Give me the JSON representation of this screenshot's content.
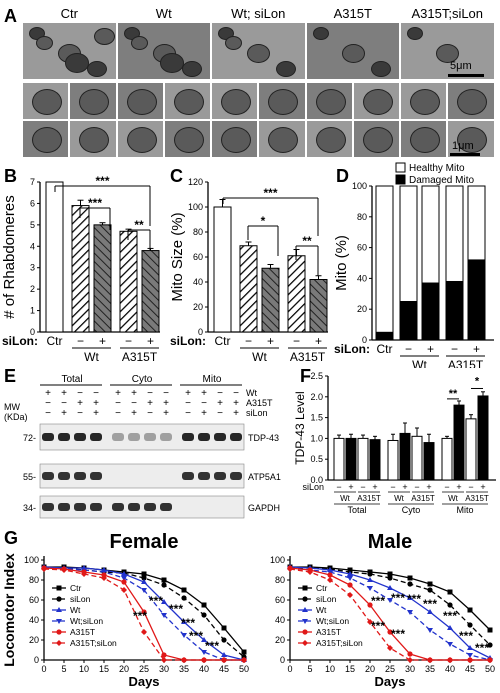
{
  "panelA": {
    "label": "A",
    "columns": [
      "Ctr",
      "Wt",
      "Wt; siLon",
      "A315T",
      "A315T;siLon"
    ],
    "scale_top": "5μm",
    "scale_bottom": "1μm"
  },
  "panelB": {
    "label": "B",
    "ylabel": "# of Rhabdomeres",
    "sig": [
      "***",
      "***",
      "**"
    ],
    "xrow_label": "siLon:",
    "ctr": "Ctr",
    "minus": "−",
    "plus": "+",
    "groups": [
      "Wt",
      "A315T"
    ]
  },
  "panelC": {
    "label": "C",
    "ylabel": "Mito Size (%)",
    "sig": [
      "***",
      "*",
      "**"
    ],
    "xrow_label": "siLon:",
    "ctr": "Ctr",
    "minus": "−",
    "plus": "+",
    "groups": [
      "Wt",
      "A315T"
    ]
  },
  "panelD": {
    "label": "D",
    "ylabel": "Mito (%)",
    "legend": [
      "Healthy Mito",
      "Damaged Mito"
    ],
    "xrow_label": "siLon:",
    "ctr": "Ctr",
    "minus": "−",
    "plus": "+",
    "groups": [
      "Wt",
      "A315T"
    ]
  },
  "panelE": {
    "label": "E",
    "fractions": [
      "Total",
      "Cyto",
      "Mito"
    ],
    "row_labels": [
      "Wt",
      "A315T",
      "siLon"
    ],
    "mw_label": "MW\n(KDa)",
    "mw": [
      "72-",
      "55-",
      "34-"
    ],
    "bands": [
      "TDP-43",
      "ATP5A1",
      "GAPDH"
    ],
    "signs": [
      [
        "+",
        "+",
        "−",
        "−",
        "+",
        "+",
        "−",
        "−",
        "+",
        "+",
        "−",
        "−"
      ],
      [
        "−",
        "−",
        "+",
        "+",
        "−",
        "−",
        "+",
        "+",
        "−",
        "−",
        "+",
        "+"
      ],
      [
        "−",
        "+",
        "−",
        "+",
        "−",
        "+",
        "−",
        "+",
        "−",
        "+",
        "−",
        "+"
      ]
    ]
  },
  "panelF": {
    "label": "F",
    "ylabel": "TDP-43 Level",
    "sig": [
      "**",
      "*"
    ],
    "silon_label": "siLon",
    "fractions": [
      "Total",
      "Cyto",
      "Mito"
    ],
    "group_labels": [
      "Wt",
      "A315T",
      "Wt",
      "A315T",
      "Wt",
      "A315T"
    ]
  },
  "panelG": {
    "label": "G",
    "ylabel": "Locomotor Index",
    "female_title": "Female",
    "male_title": "Male",
    "xlabel": "Days",
    "legend": [
      "Ctr",
      "siLon",
      "Wt",
      "Wt;siLon",
      "A315T",
      "A315T;siLon"
    ],
    "sig": "***"
  },
  "chart_data": [
    {
      "type": "bar",
      "title": "",
      "ylabel": "# of Rhabdomeres",
      "ylim": [
        0,
        7
      ],
      "categories": [
        "Ctr",
        "Wt −",
        "Wt +",
        "A315T −",
        "A315T +"
      ],
      "values": [
        7.0,
        5.9,
        5.0,
        4.7,
        3.8
      ],
      "errors": [
        0.0,
        0.25,
        0.1,
        0.1,
        0.1
      ],
      "yticks": [
        "0",
        "1",
        "2",
        "3",
        "4",
        "5",
        "6",
        "7"
      ]
    },
    {
      "type": "bar",
      "title": "",
      "ylabel": "Mito Size (%)",
      "ylim": [
        0,
        120
      ],
      "categories": [
        "Ctr",
        "Wt −",
        "Wt +",
        "A315T −",
        "A315T +"
      ],
      "values": [
        100,
        69,
        51,
        61,
        42
      ],
      "errors": [
        6,
        3,
        3,
        5,
        3
      ],
      "yticks": [
        "0",
        "20",
        "40",
        "60",
        "80",
        "100",
        "120"
      ]
    },
    {
      "type": "bar",
      "title": "",
      "ylabel": "Mito (%)",
      "ylim": [
        0,
        100
      ],
      "categories": [
        "Ctr",
        "Wt −",
        "Wt +",
        "A315T −",
        "A315T +"
      ],
      "series": [
        {
          "name": "Damaged Mito",
          "values": [
            5,
            25,
            37,
            38,
            52
          ]
        },
        {
          "name": "Healthy Mito",
          "values": [
            95,
            75,
            63,
            62,
            48
          ]
        }
      ],
      "yticks": [
        "0",
        "20",
        "40",
        "60",
        "80",
        "100"
      ]
    },
    {
      "type": "bar",
      "title": "",
      "ylabel": "TDP-43 Level",
      "ylim": [
        0,
        2.5
      ],
      "categories": [
        "Total Wt −",
        "Total Wt +",
        "Total A315T −",
        "Total A315T +",
        "Cyto Wt −",
        "Cyto Wt +",
        "Cyto A315T −",
        "Cyto A315T +",
        "Mito Wt −",
        "Mito Wt +",
        "Mito A315T −",
        "Mito A315T +"
      ],
      "values": [
        1.0,
        1.0,
        1.0,
        0.97,
        0.95,
        1.12,
        1.05,
        0.9,
        1.0,
        1.8,
        1.47,
        2.02
      ],
      "errors": [
        0.08,
        0.1,
        0.08,
        0.08,
        0.15,
        0.25,
        0.2,
        0.2,
        0.05,
        0.1,
        0.1,
        0.1
      ],
      "colors": [
        "white",
        "black",
        "white",
        "black",
        "white",
        "black",
        "white",
        "black",
        "white",
        "black",
        "white",
        "black"
      ],
      "yticks": [
        "0.0",
        "0.5",
        "1.0",
        "1.5",
        "2.0",
        "2.5"
      ]
    },
    {
      "type": "line",
      "title": "Female",
      "xlabel": "Days",
      "ylabel": "Locomotor Index",
      "x": [
        0,
        5,
        10,
        15,
        20,
        25,
        30,
        35,
        40,
        45,
        50
      ],
      "ylim": [
        0,
        100
      ],
      "xticks": [
        "0",
        "5",
        "10",
        "15",
        "20",
        "25",
        "30",
        "35",
        "40",
        "45",
        "50"
      ],
      "yticks": [
        "0",
        "20",
        "40",
        "60",
        "80",
        "100"
      ],
      "series": [
        {
          "name": "Ctr",
          "values": [
            93,
            93,
            92,
            90,
            88,
            86,
            80,
            70,
            55,
            32,
            8
          ]
        },
        {
          "name": "siLon",
          "values": [
            92,
            92,
            90,
            88,
            87,
            82,
            75,
            62,
            45,
            20,
            3
          ]
        },
        {
          "name": "Wt",
          "values": [
            93,
            92,
            92,
            90,
            86,
            78,
            58,
            38,
            20,
            5,
            0
          ]
        },
        {
          "name": "Wt;siLon",
          "values": [
            92,
            91,
            90,
            88,
            82,
            70,
            45,
            25,
            8,
            0,
            0
          ]
        },
        {
          "name": "A315T",
          "values": [
            92,
            91,
            88,
            85,
            78,
            48,
            5,
            0,
            0,
            0,
            0
          ]
        },
        {
          "name": "A315T;siLon",
          "values": [
            91,
            90,
            86,
            82,
            70,
            28,
            0,
            0,
            0,
            0,
            0
          ]
        }
      ]
    },
    {
      "type": "line",
      "title": "Male",
      "xlabel": "Days",
      "ylabel": "Locomotor Index",
      "x": [
        0,
        5,
        10,
        15,
        20,
        25,
        30,
        35,
        40,
        45,
        50
      ],
      "ylim": [
        0,
        100
      ],
      "xticks": [
        "0",
        "5",
        "10",
        "15",
        "20",
        "25",
        "30",
        "35",
        "40",
        "45",
        "50"
      ],
      "yticks": [
        "0",
        "20",
        "40",
        "60",
        "80",
        "100"
      ],
      "series": [
        {
          "name": "Ctr",
          "values": [
            93,
            93,
            92,
            90,
            88,
            86,
            82,
            76,
            68,
            50,
            30
          ]
        },
        {
          "name": "siLon",
          "values": [
            92,
            92,
            91,
            88,
            86,
            82,
            76,
            70,
            55,
            35,
            15
          ]
        },
        {
          "name": "Wt",
          "values": [
            93,
            92,
            90,
            86,
            80,
            72,
            62,
            48,
            32,
            12,
            2
          ]
        },
        {
          "name": "Wt;siLon",
          "values": [
            92,
            90,
            88,
            82,
            72,
            60,
            48,
            30,
            16,
            5,
            0
          ]
        },
        {
          "name": "A315T",
          "values": [
            92,
            90,
            85,
            75,
            55,
            28,
            6,
            0,
            0,
            0,
            0
          ]
        },
        {
          "name": "A315T;siLon",
          "values": [
            91,
            88,
            80,
            65,
            38,
            12,
            0,
            0,
            0,
            0,
            0
          ]
        }
      ]
    }
  ]
}
